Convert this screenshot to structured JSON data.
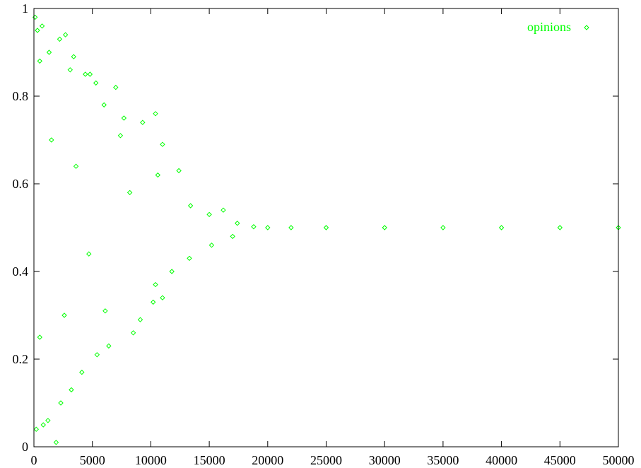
{
  "chart_data": {
    "type": "scatter",
    "title": "",
    "xlabel": "",
    "ylabel": "",
    "xlim": [
      0,
      50000
    ],
    "ylim": [
      0,
      1
    ],
    "x_ticks": [
      0,
      5000,
      10000,
      15000,
      20000,
      25000,
      30000,
      35000,
      40000,
      45000,
      50000
    ],
    "y_ticks": [
      0,
      0.2,
      0.4,
      0.6,
      0.8,
      1
    ],
    "x_tick_labels": [
      "0",
      "5000",
      "10000",
      "15000",
      "20000",
      "25000",
      "30000",
      "35000",
      "40000",
      "45000",
      "50000"
    ],
    "y_tick_labels": [
      "0",
      "0.2",
      "0.4",
      "0.6",
      "0.8",
      "1"
    ],
    "grid": false,
    "legend_position": "top-right",
    "marker": "diamond-open",
    "series": [
      {
        "name": "opinions",
        "color": "#00ff00",
        "points": [
          [
            100,
            0.98
          ],
          [
            300,
            0.95
          ],
          [
            700,
            0.96
          ],
          [
            2700,
            0.94
          ],
          [
            2200,
            0.93
          ],
          [
            1300,
            0.9
          ],
          [
            500,
            0.88
          ],
          [
            3100,
            0.86
          ],
          [
            3400,
            0.89
          ],
          [
            4400,
            0.85
          ],
          [
            4800,
            0.85
          ],
          [
            5300,
            0.83
          ],
          [
            7000,
            0.82
          ],
          [
            6000,
            0.78
          ],
          [
            10400,
            0.76
          ],
          [
            9300,
            0.74
          ],
          [
            7700,
            0.75
          ],
          [
            7400,
            0.71
          ],
          [
            11000,
            0.69
          ],
          [
            12400,
            0.63
          ],
          [
            10600,
            0.62
          ],
          [
            13400,
            0.55
          ],
          [
            15000,
            0.53
          ],
          [
            16200,
            0.54
          ],
          [
            17400,
            0.51
          ],
          [
            18800,
            0.502
          ],
          [
            20000,
            0.5
          ],
          [
            22000,
            0.5
          ],
          [
            25000,
            0.5
          ],
          [
            30000,
            0.5
          ],
          [
            35000,
            0.5
          ],
          [
            40000,
            0.5
          ],
          [
            45000,
            0.5
          ],
          [
            50000,
            0.5
          ],
          [
            17000,
            0.48
          ],
          [
            15200,
            0.46
          ],
          [
            13300,
            0.43
          ],
          [
            11800,
            0.4
          ],
          [
            10400,
            0.37
          ],
          [
            11000,
            0.34
          ],
          [
            10200,
            0.33
          ],
          [
            9100,
            0.29
          ],
          [
            8500,
            0.26
          ],
          [
            6400,
            0.23
          ],
          [
            5400,
            0.21
          ],
          [
            4100,
            0.17
          ],
          [
            3200,
            0.13
          ],
          [
            2300,
            0.1
          ],
          [
            1200,
            0.06
          ],
          [
            800,
            0.05
          ],
          [
            200,
            0.04
          ],
          [
            1900,
            0.01
          ],
          [
            500,
            0.25
          ],
          [
            2600,
            0.3
          ],
          [
            6100,
            0.31
          ],
          [
            1500,
            0.7
          ],
          [
            8200,
            0.58
          ],
          [
            3600,
            0.64
          ],
          [
            4700,
            0.44
          ]
        ]
      }
    ]
  }
}
